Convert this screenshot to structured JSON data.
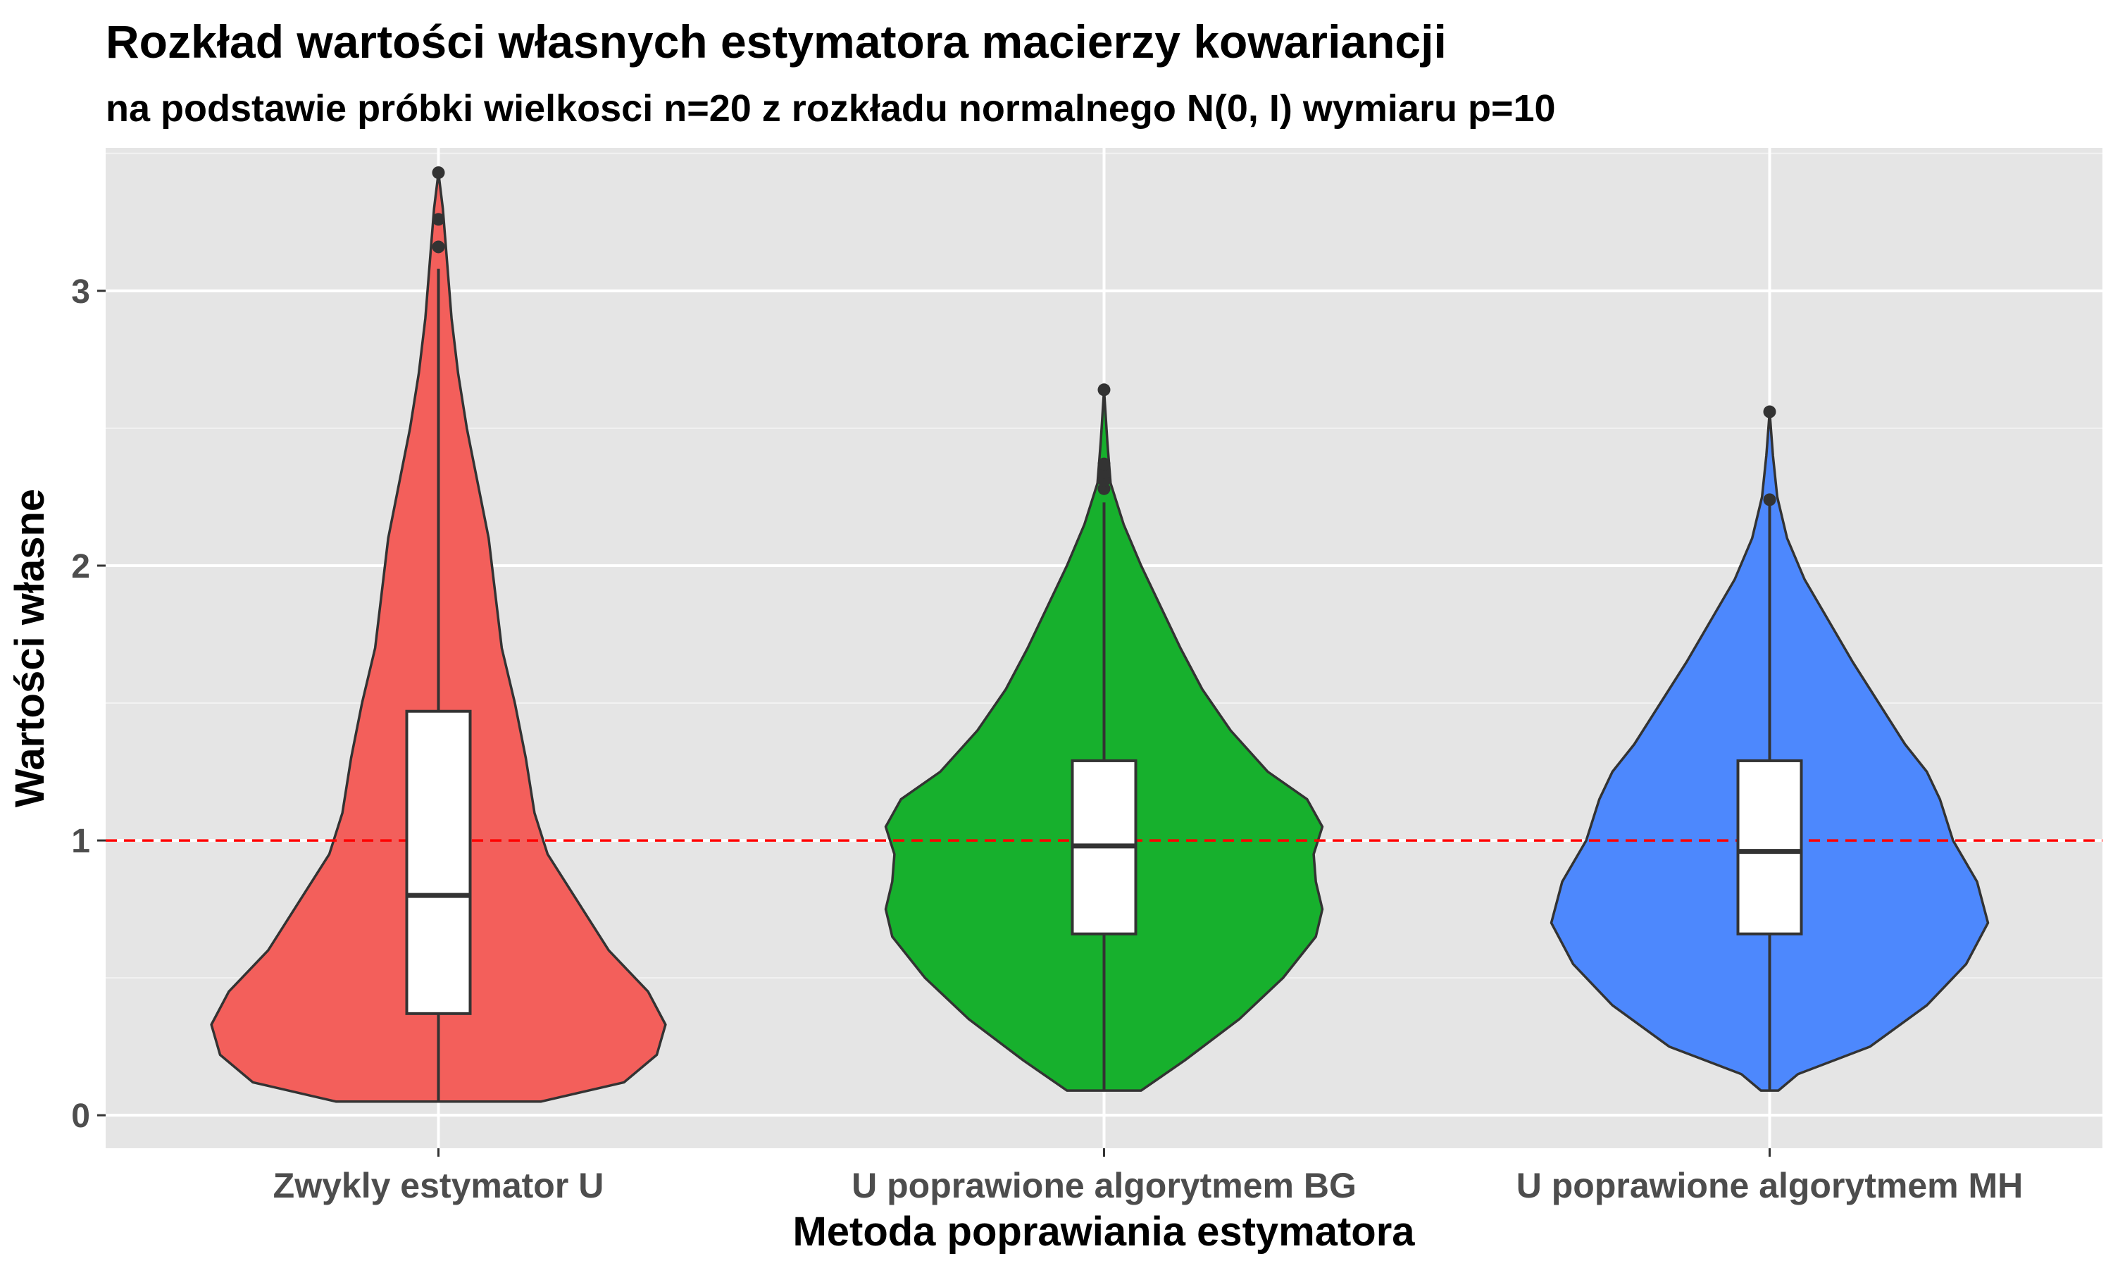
{
  "chart_data": {
    "type": "violin",
    "title": "Rozkład wartości własnych estymatora macierzy kowariancji",
    "subtitle": "na podstawie próbki wielkosci n=20 z rozkładu normalnego N(0, I) wymiaru p=10",
    "xlabel": "Metoda poprawiania estymatora",
    "ylabel": "Wartości własne",
    "categories": [
      "Zwykly estymator U",
      "U poprawione algorytmem BG",
      "U poprawione algorytmem MH"
    ],
    "ylim": [
      -0.12,
      3.52
    ],
    "yticks": [
      0,
      1,
      2,
      3
    ],
    "reference_line": {
      "y": 1,
      "color": "#ff0000",
      "style": "dashed"
    },
    "grid": true,
    "background": "#e5e5e5",
    "series": [
      {
        "color": "#f35f5b",
        "box": {
          "q1": 0.37,
          "median": 0.8,
          "q3": 1.47,
          "whisker_low": 0.05,
          "whisker_high": 3.08
        },
        "outliers": [
          3.16,
          3.26,
          3.43
        ],
        "violin_range": [
          0.05,
          3.43
        ],
        "density": [
          [
            0.05,
            0.47
          ],
          [
            0.12,
            0.85
          ],
          [
            0.22,
            1.0
          ],
          [
            0.33,
            1.04
          ],
          [
            0.45,
            0.96
          ],
          [
            0.6,
            0.78
          ],
          [
            0.8,
            0.62
          ],
          [
            0.95,
            0.5
          ],
          [
            1.1,
            0.44
          ],
          [
            1.3,
            0.4
          ],
          [
            1.5,
            0.35
          ],
          [
            1.7,
            0.29
          ],
          [
            1.9,
            0.26
          ],
          [
            2.1,
            0.23
          ],
          [
            2.3,
            0.18
          ],
          [
            2.5,
            0.13
          ],
          [
            2.7,
            0.09
          ],
          [
            2.9,
            0.06
          ],
          [
            3.1,
            0.04
          ],
          [
            3.3,
            0.02
          ],
          [
            3.43,
            0.0
          ]
        ]
      },
      {
        "color": "#17b02d",
        "box": {
          "q1": 0.66,
          "median": 0.98,
          "q3": 1.29,
          "whisker_low": 0.09,
          "whisker_high": 2.23
        },
        "outliers": [
          2.28,
          2.31,
          2.34,
          2.37,
          2.64
        ],
        "violin_range": [
          0.09,
          2.64
        ],
        "density": [
          [
            0.09,
            0.17
          ],
          [
            0.2,
            0.37
          ],
          [
            0.35,
            0.62
          ],
          [
            0.5,
            0.82
          ],
          [
            0.65,
            0.97
          ],
          [
            0.75,
            1.0
          ],
          [
            0.85,
            0.97
          ],
          [
            0.95,
            0.96
          ],
          [
            1.05,
            1.0
          ],
          [
            1.15,
            0.93
          ],
          [
            1.25,
            0.75
          ],
          [
            1.4,
            0.58
          ],
          [
            1.55,
            0.45
          ],
          [
            1.7,
            0.35
          ],
          [
            1.85,
            0.26
          ],
          [
            2.0,
            0.17
          ],
          [
            2.15,
            0.09
          ],
          [
            2.3,
            0.03
          ],
          [
            2.45,
            0.015
          ],
          [
            2.64,
            0.0
          ]
        ]
      },
      {
        "color": "#4d88fd",
        "box": {
          "q1": 0.66,
          "median": 0.96,
          "q3": 1.29,
          "whisker_low": 0.09,
          "whisker_high": 2.24
        },
        "outliers": [
          2.24,
          2.56
        ],
        "violin_range": [
          0.09,
          2.56
        ],
        "density": [
          [
            0.09,
            0.04
          ],
          [
            0.15,
            0.13
          ],
          [
            0.25,
            0.46
          ],
          [
            0.4,
            0.72
          ],
          [
            0.55,
            0.9
          ],
          [
            0.7,
            1.0
          ],
          [
            0.85,
            0.95
          ],
          [
            1.0,
            0.84
          ],
          [
            1.15,
            0.78
          ],
          [
            1.25,
            0.72
          ],
          [
            1.35,
            0.62
          ],
          [
            1.5,
            0.5
          ],
          [
            1.65,
            0.38
          ],
          [
            1.8,
            0.27
          ],
          [
            1.95,
            0.16
          ],
          [
            2.1,
            0.08
          ],
          [
            2.25,
            0.035
          ],
          [
            2.4,
            0.015
          ],
          [
            2.56,
            0.0
          ]
        ]
      }
    ]
  }
}
